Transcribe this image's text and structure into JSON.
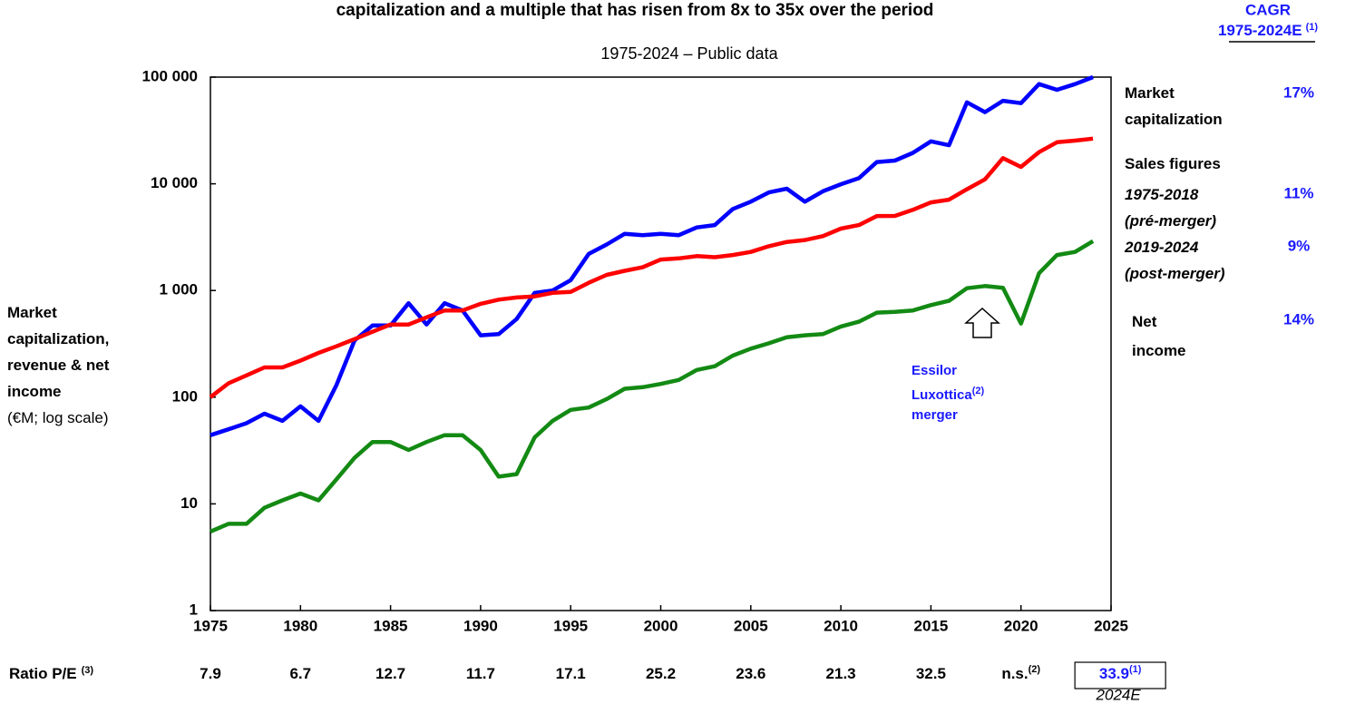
{
  "chart_data": {
    "type": "line",
    "title": "capitalization and a multiple that has risen from 8x to 35x over the period",
    "subtitle": "1975-2024 – Public data",
    "y_label": "Market capitalization, revenue & net income",
    "y_unit": "(€M; log scale)",
    "log_scale": true,
    "x": [
      1975,
      1976,
      1977,
      1978,
      1979,
      1980,
      1981,
      1982,
      1983,
      1984,
      1985,
      1986,
      1987,
      1988,
      1989,
      1990,
      1991,
      1992,
      1993,
      1994,
      1995,
      1996,
      1997,
      1998,
      1999,
      2000,
      2001,
      2002,
      2003,
      2004,
      2005,
      2006,
      2007,
      2008,
      2009,
      2010,
      2011,
      2012,
      2013,
      2014,
      2015,
      2016,
      2017,
      2018,
      2019,
      2020,
      2021,
      2022,
      2023,
      2024
    ],
    "series": [
      {
        "name": "Market capitalization",
        "color": "#0000ff",
        "values": [
          44,
          50,
          57,
          70,
          60,
          82,
          60,
          130,
          340,
          470,
          470,
          760,
          480,
          760,
          650,
          380,
          390,
          540,
          950,
          1000,
          1250,
          2200,
          2700,
          3400,
          3300,
          3400,
          3300,
          3900,
          4100,
          5800,
          6800,
          8300,
          9000,
          6800,
          8500,
          9900,
          11300,
          16000,
          16500,
          19500,
          25000,
          23000,
          58000,
          47000,
          60000,
          57000,
          86000,
          76000,
          86000,
          100000
        ]
      },
      {
        "name": "Sales figures",
        "color": "#ff0000",
        "values": [
          100,
          135,
          160,
          190,
          190,
          220,
          260,
          300,
          350,
          410,
          480,
          480,
          560,
          650,
          650,
          750,
          820,
          860,
          880,
          950,
          970,
          1180,
          1400,
          1530,
          1650,
          1950,
          2000,
          2100,
          2050,
          2150,
          2300,
          2600,
          2850,
          2970,
          3230,
          3800,
          4100,
          4990,
          5000,
          5700,
          6700,
          7100,
          8900,
          11000,
          17400,
          14400,
          19800,
          24500,
          25400,
          26500
        ]
      },
      {
        "name": "Net income",
        "color": "#138a13",
        "values": [
          5.5,
          6.5,
          6.5,
          9.2,
          10.8,
          12.5,
          10.8,
          17,
          27,
          38,
          38,
          32,
          38,
          44,
          44,
          32,
          18,
          19,
          42,
          60,
          76,
          80,
          96,
          120,
          124,
          133,
          145,
          180,
          195,
          245,
          285,
          320,
          365,
          380,
          390,
          460,
          510,
          620,
          630,
          650,
          730,
          800,
          1050,
          1100,
          1060,
          490,
          1450,
          2150,
          2300,
          2900
        ]
      }
    ],
    "xlim": [
      1975,
      2025
    ],
    "xticks": [
      1975,
      1980,
      1985,
      1990,
      1995,
      2000,
      2005,
      2010,
      2015,
      2020,
      2025
    ],
    "ylim": [
      1,
      100000
    ],
    "yticks": [
      1,
      10,
      100,
      {
        "value": 1000,
        "label": "1 000"
      },
      {
        "value": 10000,
        "label": "10 000"
      },
      {
        "value": 100000,
        "label": "100 000"
      }
    ],
    "annotation": {
      "text": "Essilor Luxottica",
      "note": "(2)",
      "text2": "merger",
      "x": 2018.5
    },
    "cagr": {
      "title": "CAGR",
      "period": "1975-2024E",
      "note": "(1)",
      "values": [
        17,
        11,
        9,
        14
      ],
      "value_labels": [
        "17%",
        "11%",
        "9%",
        "14%"
      ],
      "sales_periods": [
        {
          "period": "1975-2018",
          "phase": "(pré-merger)"
        },
        {
          "period": "2019-2024",
          "phase": "(post-merger)"
        }
      ]
    },
    "pe_ratio": {
      "label": "Ratio P/E",
      "note": "(3)",
      "items": [
        {
          "x": 1975,
          "value": 7.9
        },
        {
          "x": 1980,
          "value": 6.7
        },
        {
          "x": 1985,
          "value": 12.7
        },
        {
          "x": 1990,
          "value": 11.7
        },
        {
          "x": 1995,
          "value": 17.1
        },
        {
          "x": 2000,
          "value": 25.2
        },
        {
          "x": 2005,
          "value": 23.6
        },
        {
          "x": 2010,
          "value": 21.3
        },
        {
          "x": 2015,
          "value": 32.5
        },
        {
          "x": 2020,
          "label": "n.s.",
          "note": "(2)"
        },
        {
          "x": 2024,
          "value": 33.9,
          "note": "(1)",
          "sublabel": "2024E"
        }
      ]
    }
  }
}
